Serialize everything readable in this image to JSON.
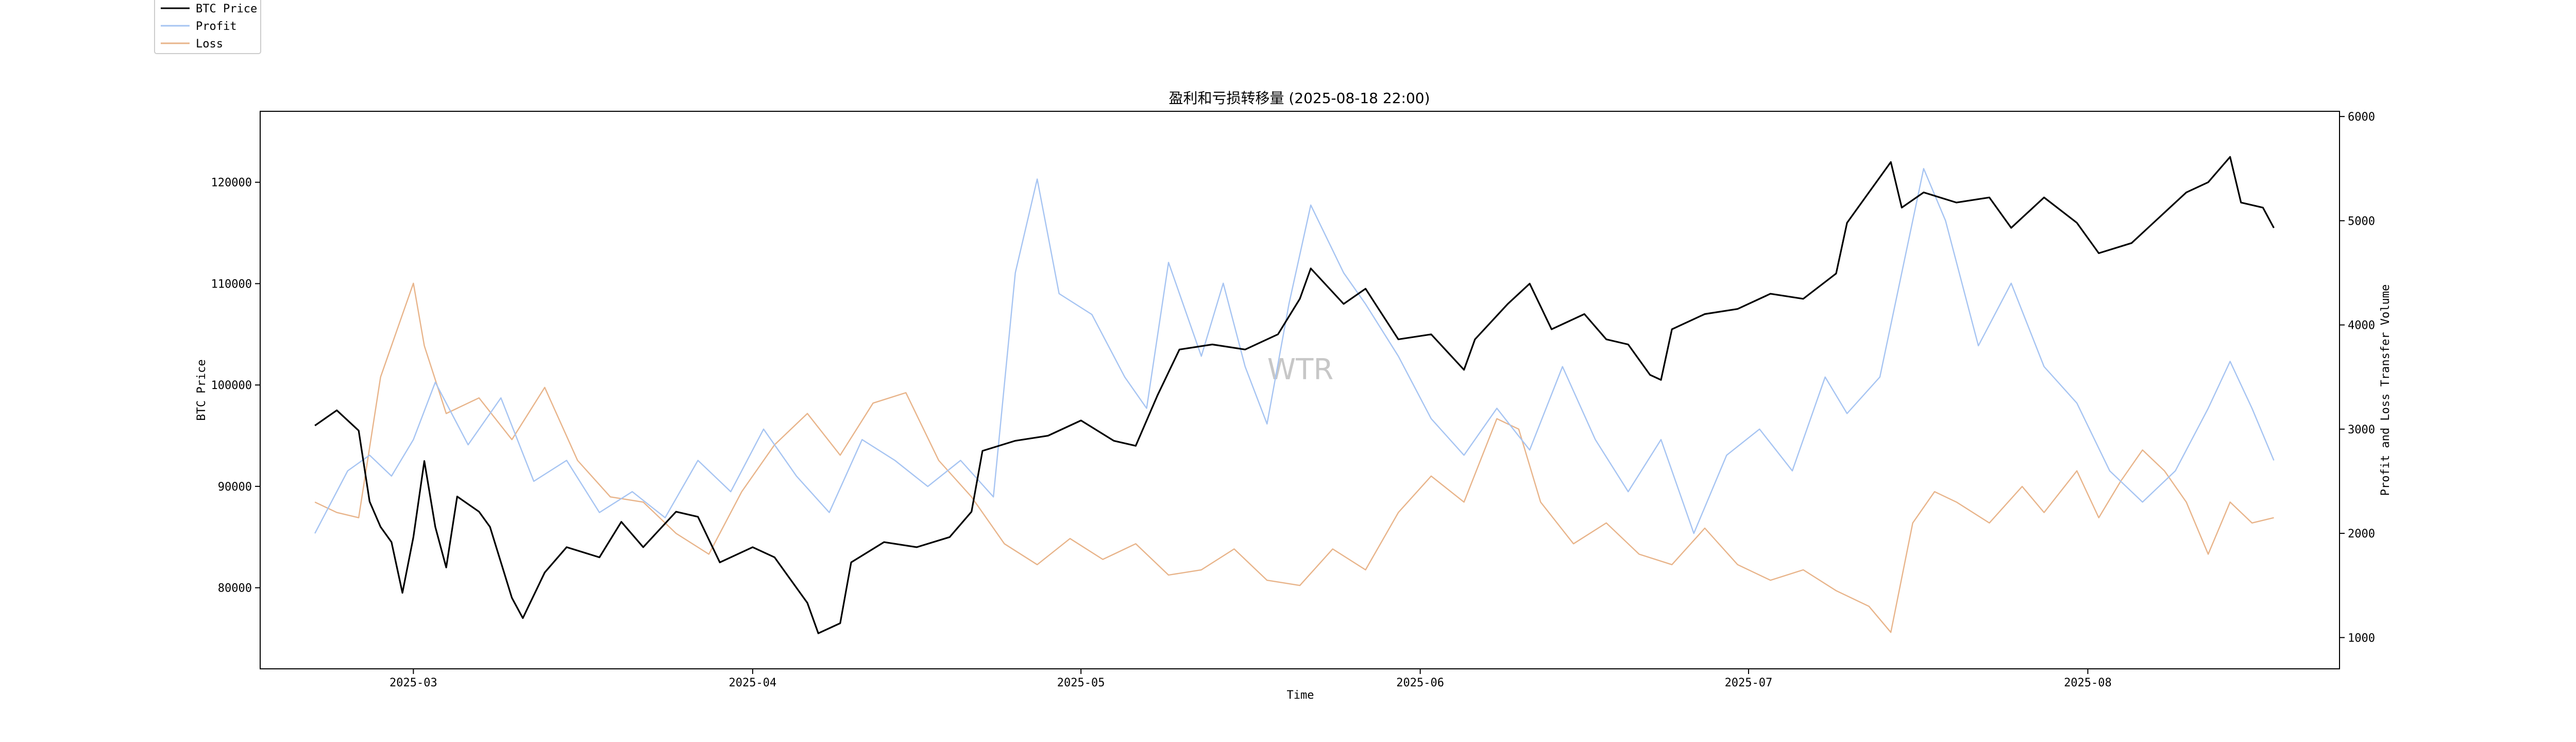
{
  "chart_data": {
    "type": "line",
    "title": "盈利和亏损转移量 (2025-08-18 22:00)",
    "xlabel": "Time",
    "ylabel_left": "BTC Price",
    "ylabel_right": "Profit and Loss Transfer Volume",
    "watermark": "WTR",
    "legend_position": "top-left",
    "grid": false,
    "x_range": [
      "2025-02-15",
      "2025-08-24"
    ],
    "ylim_left": [
      72000,
      127000
    ],
    "ylim_right": [
      700,
      6050
    ],
    "x_ticks": [
      "2025-03",
      "2025-04",
      "2025-05",
      "2025-06",
      "2025-07",
      "2025-08"
    ],
    "y_ticks_left": [
      "80000",
      "90000",
      "100000",
      "110000",
      "120000"
    ],
    "y_ticks_right": [
      "1000",
      "2000",
      "3000",
      "4000",
      "5000",
      "6000"
    ],
    "series": [
      {
        "name": "BTC Price",
        "axis": "left",
        "color": "#000000",
        "points": [
          [
            "2025-02-20",
            96000
          ],
          [
            "2025-02-22",
            97500
          ],
          [
            "2025-02-24",
            95500
          ],
          [
            "2025-02-25",
            88500
          ],
          [
            "2025-02-26",
            86000
          ],
          [
            "2025-02-27",
            84500
          ],
          [
            "2025-02-28",
            79500
          ],
          [
            "2025-03-01",
            85000
          ],
          [
            "2025-03-02",
            92500
          ],
          [
            "2025-03-03",
            86000
          ],
          [
            "2025-03-04",
            82000
          ],
          [
            "2025-03-05",
            89000
          ],
          [
            "2025-03-07",
            87500
          ],
          [
            "2025-03-08",
            86000
          ],
          [
            "2025-03-10",
            79000
          ],
          [
            "2025-03-11",
            77000
          ],
          [
            "2025-03-13",
            81500
          ],
          [
            "2025-03-15",
            84000
          ],
          [
            "2025-03-18",
            83000
          ],
          [
            "2025-03-20",
            86500
          ],
          [
            "2025-03-22",
            84000
          ],
          [
            "2025-03-25",
            87500
          ],
          [
            "2025-03-27",
            87000
          ],
          [
            "2025-03-29",
            82500
          ],
          [
            "2025-04-01",
            84000
          ],
          [
            "2025-04-03",
            83000
          ],
          [
            "2025-04-06",
            78500
          ],
          [
            "2025-04-07",
            75500
          ],
          [
            "2025-04-09",
            76500
          ],
          [
            "2025-04-10",
            82500
          ],
          [
            "2025-04-13",
            84500
          ],
          [
            "2025-04-16",
            84000
          ],
          [
            "2025-04-19",
            85000
          ],
          [
            "2025-04-21",
            87500
          ],
          [
            "2025-04-22",
            93500
          ],
          [
            "2025-04-25",
            94500
          ],
          [
            "2025-04-28",
            95000
          ],
          [
            "2025-05-01",
            96500
          ],
          [
            "2025-05-04",
            94500
          ],
          [
            "2025-05-06",
            94000
          ],
          [
            "2025-05-08",
            99000
          ],
          [
            "2025-05-10",
            103500
          ],
          [
            "2025-05-13",
            104000
          ],
          [
            "2025-05-16",
            103500
          ],
          [
            "2025-05-19",
            105000
          ],
          [
            "2025-05-21",
            108500
          ],
          [
            "2025-05-22",
            111500
          ],
          [
            "2025-05-25",
            108000
          ],
          [
            "2025-05-27",
            109500
          ],
          [
            "2025-05-30",
            104500
          ],
          [
            "2025-06-02",
            105000
          ],
          [
            "2025-06-05",
            101500
          ],
          [
            "2025-06-06",
            104500
          ],
          [
            "2025-06-09",
            108000
          ],
          [
            "2025-06-11",
            110000
          ],
          [
            "2025-06-13",
            105500
          ],
          [
            "2025-06-16",
            107000
          ],
          [
            "2025-06-18",
            104500
          ],
          [
            "2025-06-20",
            104000
          ],
          [
            "2025-06-22",
            101000
          ],
          [
            "2025-06-23",
            100500
          ],
          [
            "2025-06-24",
            105500
          ],
          [
            "2025-06-27",
            107000
          ],
          [
            "2025-06-30",
            107500
          ],
          [
            "2025-07-03",
            109000
          ],
          [
            "2025-07-06",
            108500
          ],
          [
            "2025-07-09",
            111000
          ],
          [
            "2025-07-10",
            116000
          ],
          [
            "2025-07-11",
            117500
          ],
          [
            "2025-07-14",
            122000
          ],
          [
            "2025-07-15",
            117500
          ],
          [
            "2025-07-17",
            119000
          ],
          [
            "2025-07-20",
            118000
          ],
          [
            "2025-07-23",
            118500
          ],
          [
            "2025-07-25",
            115500
          ],
          [
            "2025-07-28",
            118500
          ],
          [
            "2025-07-31",
            116000
          ],
          [
            "2025-08-02",
            113000
          ],
          [
            "2025-08-05",
            114000
          ],
          [
            "2025-08-08",
            117000
          ],
          [
            "2025-08-10",
            119000
          ],
          [
            "2025-08-12",
            120000
          ],
          [
            "2025-08-14",
            122500
          ],
          [
            "2025-08-15",
            118000
          ],
          [
            "2025-08-17",
            117500
          ],
          [
            "2025-08-18",
            115500
          ]
        ]
      },
      {
        "name": "Profit",
        "axis": "right",
        "color": "#a6c4f2",
        "points": [
          [
            "2025-02-20",
            2000
          ],
          [
            "2025-02-23",
            2600
          ],
          [
            "2025-02-25",
            2750
          ],
          [
            "2025-02-27",
            2550
          ],
          [
            "2025-03-01",
            2900
          ],
          [
            "2025-03-03",
            3450
          ],
          [
            "2025-03-06",
            2850
          ],
          [
            "2025-03-09",
            3300
          ],
          [
            "2025-03-12",
            2500
          ],
          [
            "2025-03-15",
            2700
          ],
          [
            "2025-03-18",
            2200
          ],
          [
            "2025-03-21",
            2400
          ],
          [
            "2025-03-24",
            2150
          ],
          [
            "2025-03-27",
            2700
          ],
          [
            "2025-03-30",
            2400
          ],
          [
            "2025-04-02",
            3000
          ],
          [
            "2025-04-05",
            2550
          ],
          [
            "2025-04-08",
            2200
          ],
          [
            "2025-04-11",
            2900
          ],
          [
            "2025-04-14",
            2700
          ],
          [
            "2025-04-17",
            2450
          ],
          [
            "2025-04-20",
            2700
          ],
          [
            "2025-04-23",
            2350
          ],
          [
            "2025-04-25",
            4500
          ],
          [
            "2025-04-27",
            5400
          ],
          [
            "2025-04-29",
            4300
          ],
          [
            "2025-05-02",
            4100
          ],
          [
            "2025-05-05",
            3500
          ],
          [
            "2025-05-07",
            3200
          ],
          [
            "2025-05-09",
            4600
          ],
          [
            "2025-05-12",
            3700
          ],
          [
            "2025-05-14",
            4400
          ],
          [
            "2025-05-16",
            3600
          ],
          [
            "2025-05-18",
            3050
          ],
          [
            "2025-05-20",
            4200
          ],
          [
            "2025-05-22",
            5150
          ],
          [
            "2025-05-25",
            4500
          ],
          [
            "2025-05-27",
            4200
          ],
          [
            "2025-05-30",
            3700
          ],
          [
            "2025-06-02",
            3100
          ],
          [
            "2025-06-05",
            2750
          ],
          [
            "2025-06-08",
            3200
          ],
          [
            "2025-06-11",
            2800
          ],
          [
            "2025-06-14",
            3600
          ],
          [
            "2025-06-17",
            2900
          ],
          [
            "2025-06-20",
            2400
          ],
          [
            "2025-06-23",
            2900
          ],
          [
            "2025-06-26",
            2000
          ],
          [
            "2025-06-29",
            2750
          ],
          [
            "2025-07-02",
            3000
          ],
          [
            "2025-07-05",
            2600
          ],
          [
            "2025-07-08",
            3500
          ],
          [
            "2025-07-10",
            3150
          ],
          [
            "2025-07-13",
            3500
          ],
          [
            "2025-07-15",
            4500
          ],
          [
            "2025-07-17",
            5500
          ],
          [
            "2025-07-19",
            5000
          ],
          [
            "2025-07-22",
            3800
          ],
          [
            "2025-07-25",
            4400
          ],
          [
            "2025-07-28",
            3600
          ],
          [
            "2025-07-31",
            3250
          ],
          [
            "2025-08-03",
            2600
          ],
          [
            "2025-08-06",
            2300
          ],
          [
            "2025-08-09",
            2600
          ],
          [
            "2025-08-12",
            3200
          ],
          [
            "2025-08-14",
            3650
          ],
          [
            "2025-08-16",
            3200
          ],
          [
            "2025-08-18",
            2700
          ]
        ]
      },
      {
        "name": "Loss",
        "axis": "right",
        "color": "#e8b48a",
        "points": [
          [
            "2025-02-20",
            2300
          ],
          [
            "2025-02-22",
            2200
          ],
          [
            "2025-02-24",
            2150
          ],
          [
            "2025-02-26",
            3500
          ],
          [
            "2025-02-28",
            4100
          ],
          [
            "2025-03-01",
            4400
          ],
          [
            "2025-03-02",
            3800
          ],
          [
            "2025-03-04",
            3150
          ],
          [
            "2025-03-07",
            3300
          ],
          [
            "2025-03-10",
            2900
          ],
          [
            "2025-03-13",
            3400
          ],
          [
            "2025-03-16",
            2700
          ],
          [
            "2025-03-19",
            2350
          ],
          [
            "2025-03-22",
            2300
          ],
          [
            "2025-03-25",
            2000
          ],
          [
            "2025-03-28",
            1800
          ],
          [
            "2025-03-31",
            2400
          ],
          [
            "2025-04-03",
            2850
          ],
          [
            "2025-04-06",
            3150
          ],
          [
            "2025-04-09",
            2750
          ],
          [
            "2025-04-12",
            3250
          ],
          [
            "2025-04-15",
            3350
          ],
          [
            "2025-04-18",
            2700
          ],
          [
            "2025-04-21",
            2350
          ],
          [
            "2025-04-24",
            1900
          ],
          [
            "2025-04-27",
            1700
          ],
          [
            "2025-04-30",
            1950
          ],
          [
            "2025-05-03",
            1750
          ],
          [
            "2025-05-06",
            1900
          ],
          [
            "2025-05-09",
            1600
          ],
          [
            "2025-05-12",
            1650
          ],
          [
            "2025-05-15",
            1850
          ],
          [
            "2025-05-18",
            1550
          ],
          [
            "2025-05-21",
            1500
          ],
          [
            "2025-05-24",
            1850
          ],
          [
            "2025-05-27",
            1650
          ],
          [
            "2025-05-30",
            2200
          ],
          [
            "2025-06-02",
            2550
          ],
          [
            "2025-06-05",
            2300
          ],
          [
            "2025-06-08",
            3100
          ],
          [
            "2025-06-10",
            3000
          ],
          [
            "2025-06-12",
            2300
          ],
          [
            "2025-06-15",
            1900
          ],
          [
            "2025-06-18",
            2100
          ],
          [
            "2025-06-21",
            1800
          ],
          [
            "2025-06-24",
            1700
          ],
          [
            "2025-06-27",
            2050
          ],
          [
            "2025-06-30",
            1700
          ],
          [
            "2025-07-03",
            1550
          ],
          [
            "2025-07-06",
            1650
          ],
          [
            "2025-07-09",
            1450
          ],
          [
            "2025-07-12",
            1300
          ],
          [
            "2025-07-14",
            1050
          ],
          [
            "2025-07-16",
            2100
          ],
          [
            "2025-07-18",
            2400
          ],
          [
            "2025-07-20",
            2300
          ],
          [
            "2025-07-23",
            2100
          ],
          [
            "2025-07-26",
            2450
          ],
          [
            "2025-07-28",
            2200
          ],
          [
            "2025-07-31",
            2600
          ],
          [
            "2025-08-02",
            2150
          ],
          [
            "2025-08-04",
            2500
          ],
          [
            "2025-08-06",
            2800
          ],
          [
            "2025-08-08",
            2600
          ],
          [
            "2025-08-10",
            2300
          ],
          [
            "2025-08-12",
            1800
          ],
          [
            "2025-08-14",
            2300
          ],
          [
            "2025-08-16",
            2100
          ],
          [
            "2025-08-18",
            2150
          ]
        ]
      }
    ]
  }
}
